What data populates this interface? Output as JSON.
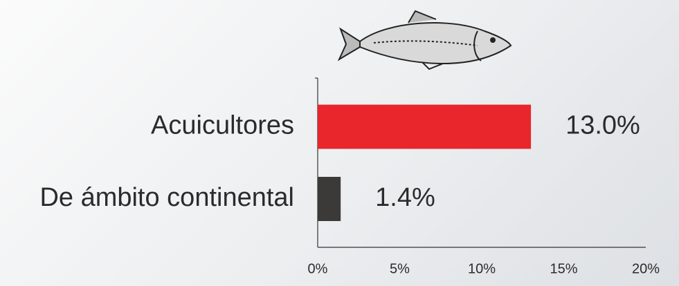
{
  "chart_data": {
    "type": "hbar",
    "categories": [
      "Acuicultores",
      "De ámbito continental"
    ],
    "values": [
      13.0,
      1.4
    ],
    "value_labels": [
      "13.0%",
      "1.4%"
    ],
    "colors": [
      "#e8262b",
      "#3b3a38"
    ],
    "xlim": [
      0,
      20
    ],
    "xticks": [
      {
        "value": 0,
        "label": "0%"
      },
      {
        "value": 5,
        "label": "5%"
      },
      {
        "value": 10,
        "label": "10%"
      },
      {
        "value": 15,
        "label": "15%"
      },
      {
        "value": 20,
        "label": "20%"
      }
    ]
  }
}
